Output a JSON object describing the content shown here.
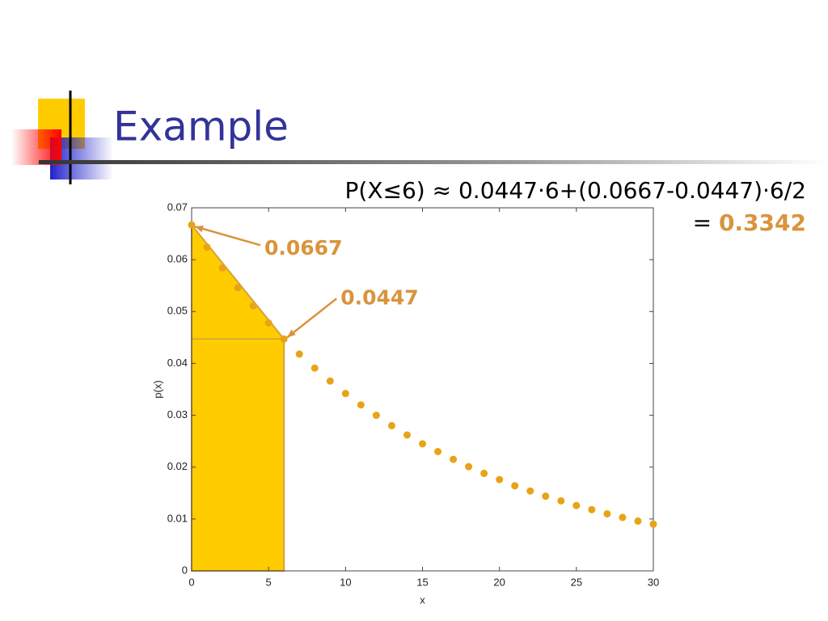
{
  "title": "Example",
  "formula": {
    "line1": "P(X≤6) ≈ 0.0447·6+(0.0667-0.0447)·6/2",
    "line2_prefix": "=",
    "result": "0.3342"
  },
  "chart_data": {
    "type": "scatter",
    "xlabel": "x",
    "ylabel": "p(x)",
    "x": [
      0,
      1,
      2,
      3,
      4,
      5,
      6,
      7,
      8,
      9,
      10,
      11,
      12,
      13,
      14,
      15,
      16,
      17,
      18,
      19,
      20,
      21,
      22,
      23,
      24,
      25,
      26,
      27,
      28,
      29,
      30
    ],
    "values": [
      0.0667,
      0.0624,
      0.0584,
      0.0546,
      0.0511,
      0.0478,
      0.0447,
      0.0418,
      0.0391,
      0.0366,
      0.0342,
      0.032,
      0.03,
      0.028,
      0.0262,
      0.0245,
      0.023,
      0.0215,
      0.0201,
      0.0188,
      0.0176,
      0.0164,
      0.0154,
      0.0144,
      0.0135,
      0.0126,
      0.0118,
      0.011,
      0.0103,
      0.0096,
      0.009
    ],
    "color": "#e8a317",
    "shade_color": "#ffcc00",
    "shade_x": [
      0,
      6
    ],
    "xlim": [
      0,
      30
    ],
    "xticks": [
      0,
      5,
      10,
      15,
      20,
      25,
      30
    ],
    "ylim": [
      0,
      0.07
    ],
    "yticks": [
      0,
      0.01,
      0.02,
      0.03,
      0.04,
      0.05,
      0.06,
      0.07
    ],
    "annotations": [
      {
        "text": "0.0667",
        "x": 0,
        "y": 0.0667
      },
      {
        "text": "0.0447",
        "x": 6,
        "y": 0.0447
      }
    ]
  }
}
